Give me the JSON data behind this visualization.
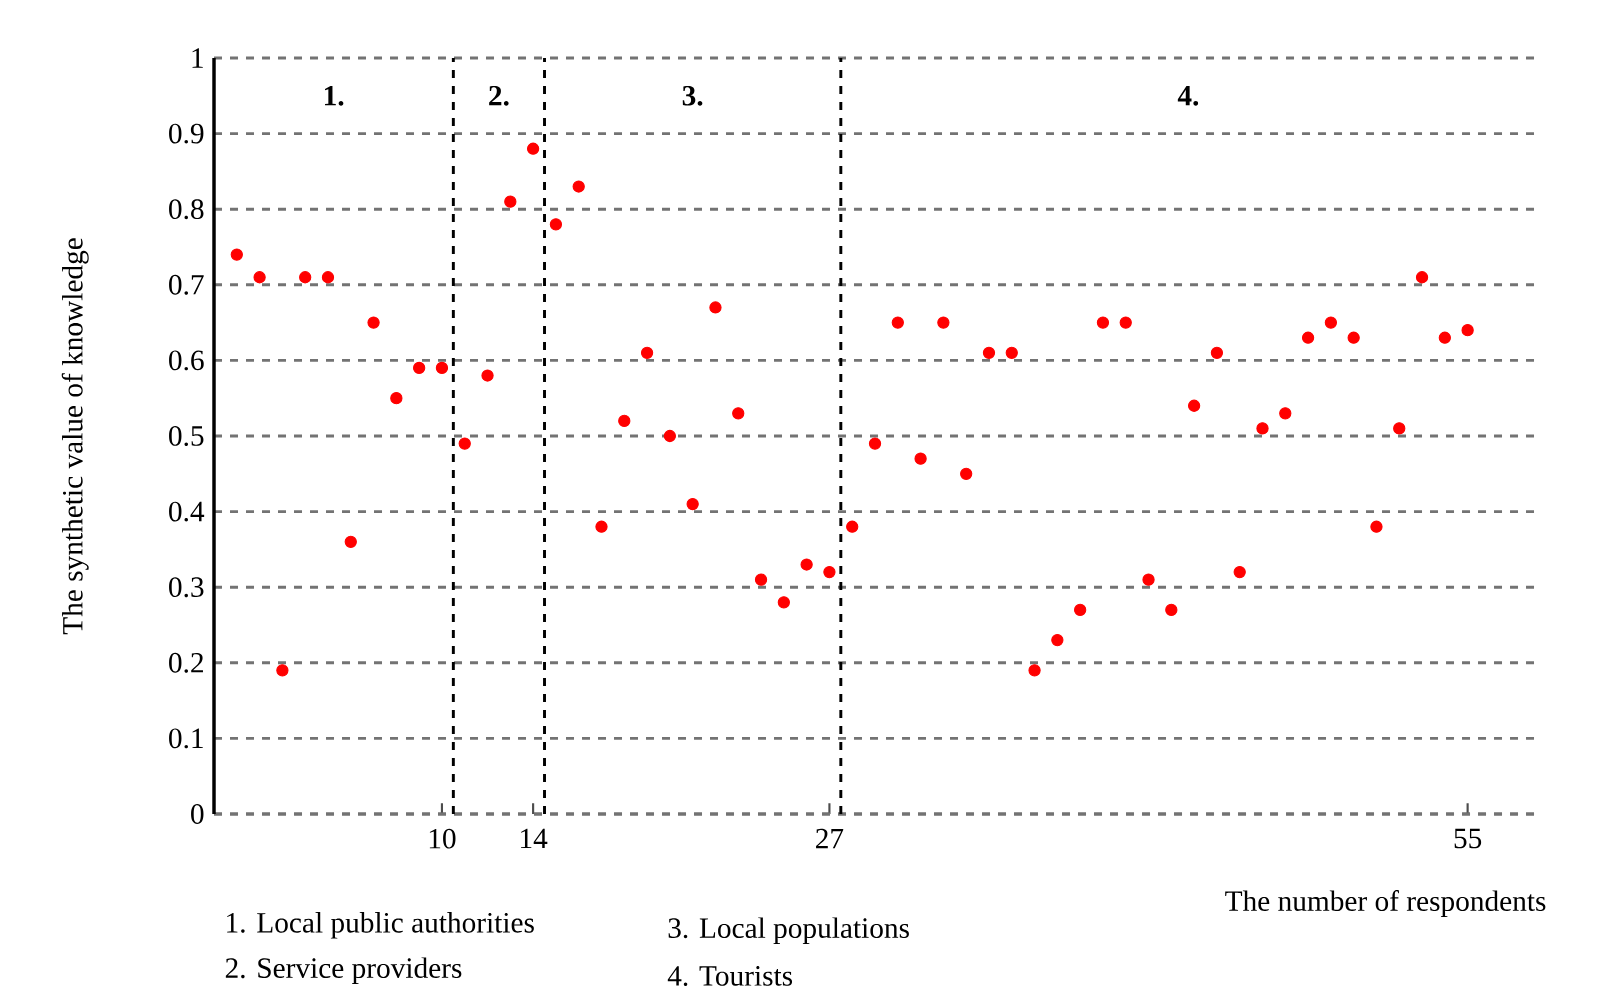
{
  "chart_data": {
    "type": "scatter",
    "ylabel": "The synthetic value of knowledge",
    "xlabel": "The number of respondents",
    "x": [
      1,
      2,
      3,
      4,
      5,
      6,
      7,
      8,
      9,
      10,
      11,
      12,
      13,
      14,
      15,
      16,
      17,
      18,
      19,
      20,
      21,
      22,
      23,
      24,
      25,
      26,
      27,
      28,
      29,
      30,
      31,
      32,
      33,
      34,
      35,
      36,
      37,
      38,
      39,
      40,
      41,
      42,
      43,
      44,
      45,
      46,
      47,
      48,
      49,
      50,
      51,
      52,
      53,
      54,
      55
    ],
    "series": [
      {
        "color": "#ff0000",
        "values": [
          0.74,
          0.71,
          0.19,
          0.71,
          0.71,
          0.36,
          0.65,
          0.55,
          0.59,
          0.59,
          0.49,
          0.58,
          0.81,
          0.88,
          0.78,
          0.83,
          0.38,
          0.52,
          0.61,
          0.5,
          0.41,
          0.67,
          0.53,
          0.31,
          0.28,
          0.33,
          0.32,
          0.38,
          0.49,
          0.65,
          0.47,
          0.65,
          0.45,
          0.61,
          0.61,
          0.19,
          0.23,
          0.27,
          0.65,
          0.65,
          0.31,
          0.27,
          0.54,
          0.61,
          0.32,
          0.51,
          0.53,
          0.63,
          0.65,
          0.63,
          0.38,
          0.51,
          0.71,
          0.63,
          0.64
        ]
      }
    ],
    "xlim": [
      0,
      58
    ],
    "xticks": [
      10,
      14,
      27,
      55
    ],
    "ylim": [
      0,
      1
    ],
    "yticks": [
      0,
      0.1,
      0.2,
      0.3,
      0.4,
      0.5,
      0.6,
      0.7,
      0.8,
      0.9,
      1
    ],
    "grid": "y",
    "marker": "circle",
    "ref_lines": [
      {
        "axis": "x",
        "value": 10.5,
        "color": "#000000",
        "line_style": "dashed"
      },
      {
        "axis": "x",
        "value": 14.5,
        "color": "#000000",
        "line_style": "dashed"
      },
      {
        "axis": "x",
        "value": 27.5,
        "color": "#000000",
        "line_style": "dashed"
      }
    ],
    "annotations": [
      "1.",
      "2.",
      "3.",
      "4.",
      "1. Local public authorities",
      "2. Service providers",
      "3. Local populations",
      "4. Tourists"
    ]
  }
}
